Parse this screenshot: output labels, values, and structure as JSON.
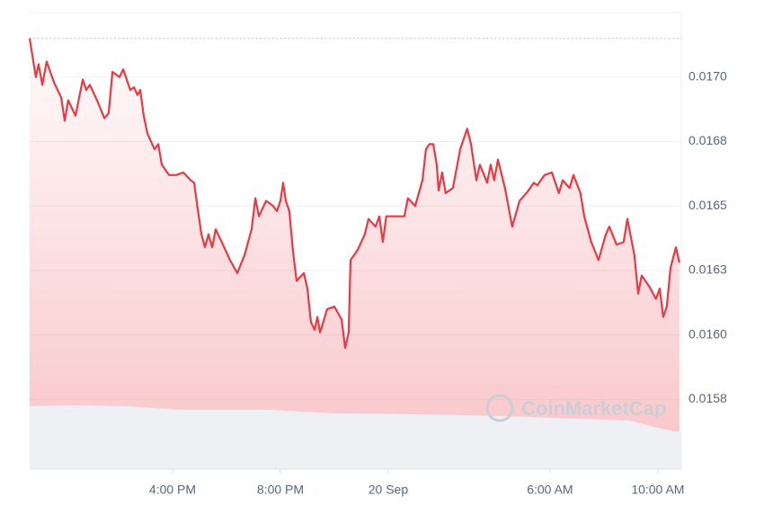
{
  "chart_data": {
    "type": "line",
    "watermark": "CoinMarketCap",
    "xlim": [
      10.7,
      34.87
    ],
    "xticks": [
      {
        "value": 16,
        "label": "4:00 PM"
      },
      {
        "value": 20,
        "label": "8:00 PM"
      },
      {
        "value": 24,
        "label": "20 Sep"
      },
      {
        "value": 30,
        "label": "6:00 AM"
      },
      {
        "value": 34,
        "label": "10:00 AM"
      }
    ],
    "ylim": [
      0.01548,
      0.01725
    ],
    "yticks": [
      {
        "value": 0.017,
        "label": "0.0170"
      },
      {
        "value": 0.01675,
        "label": "0.0168"
      },
      {
        "value": 0.0165,
        "label": "0.0165"
      },
      {
        "value": 0.01625,
        "label": "0.0163"
      },
      {
        "value": 0.016,
        "label": "0.0160"
      },
      {
        "value": 0.01575,
        "label": "0.0158"
      }
    ],
    "grid": true,
    "color": "#ea3943",
    "x": [
      10.7,
      10.93,
      11.03,
      11.17,
      11.33,
      11.6,
      11.87,
      12.0,
      12.13,
      12.4,
      12.67,
      12.8,
      12.93,
      13.2,
      13.47,
      13.63,
      13.77,
      14.03,
      14.17,
      14.43,
      14.57,
      14.7,
      14.8,
      14.93,
      15.07,
      15.33,
      15.47,
      15.6,
      15.87,
      16.13,
      16.4,
      16.67,
      16.8,
      16.93,
      17.07,
      17.2,
      17.33,
      17.47,
      17.6,
      17.87,
      18.13,
      18.4,
      18.67,
      18.93,
      19.07,
      19.2,
      19.47,
      19.73,
      19.87,
      20.0,
      20.1,
      20.2,
      20.33,
      20.47,
      20.6,
      20.87,
      21.0,
      21.13,
      21.27,
      21.37,
      21.47,
      21.73,
      22.0,
      22.27,
      22.4,
      22.53,
      22.6,
      22.87,
      23.13,
      23.27,
      23.53,
      23.67,
      23.8,
      23.93,
      24.2,
      24.6,
      24.73,
      25.0,
      25.27,
      25.4,
      25.53,
      25.67,
      25.8,
      25.87,
      26.0,
      26.13,
      26.4,
      26.67,
      26.93,
      27.07,
      27.27,
      27.4,
      27.67,
      27.8,
      27.93,
      28.07,
      28.33,
      28.6,
      28.87,
      29.13,
      29.4,
      29.53,
      29.8,
      30.07,
      30.33,
      30.47,
      30.73,
      30.87,
      31.13,
      31.27,
      31.53,
      31.8,
      32.07,
      32.2,
      32.47,
      32.73,
      32.87,
      33.13,
      33.27,
      33.4,
      33.67,
      33.93,
      34.07,
      34.2,
      34.33,
      34.47,
      34.67,
      34.8
    ],
    "values": [
      0.01715,
      0.017,
      0.01705,
      0.01697,
      0.01706,
      0.01698,
      0.01692,
      0.01683,
      0.01691,
      0.01685,
      0.01699,
      0.01695,
      0.01697,
      0.01691,
      0.01684,
      0.01686,
      0.01702,
      0.017,
      0.01703,
      0.01695,
      0.01696,
      0.01693,
      0.01695,
      0.01685,
      0.01678,
      0.01672,
      0.01674,
      0.01666,
      0.01662,
      0.01662,
      0.01663,
      0.0166,
      0.01659,
      0.01649,
      0.01639,
      0.01634,
      0.01639,
      0.01634,
      0.01641,
      0.01635,
      0.01629,
      0.01624,
      0.01631,
      0.01641,
      0.01653,
      0.01646,
      0.01652,
      0.0165,
      0.01648,
      0.01652,
      0.01659,
      0.01652,
      0.01648,
      0.01632,
      0.01621,
      0.01624,
      0.01618,
      0.01605,
      0.01602,
      0.01607,
      0.01601,
      0.0161,
      0.01611,
      0.01606,
      0.01595,
      0.01601,
      0.01629,
      0.01633,
      0.01639,
      0.01645,
      0.01642,
      0.01646,
      0.01636,
      0.01646,
      0.01646,
      0.01646,
      0.01653,
      0.0165,
      0.0166,
      0.01672,
      0.01674,
      0.01674,
      0.01666,
      0.01656,
      0.01663,
      0.01655,
      0.01657,
      0.01672,
      0.0168,
      0.01674,
      0.0166,
      0.01666,
      0.01659,
      0.01666,
      0.0166,
      0.01668,
      0.01657,
      0.01642,
      0.01652,
      0.01655,
      0.01659,
      0.01658,
      0.01662,
      0.01663,
      0.01655,
      0.0166,
      0.01657,
      0.01662,
      0.01655,
      0.01646,
      0.01636,
      0.01629,
      0.01639,
      0.01642,
      0.01635,
      0.01636,
      0.01645,
      0.01631,
      0.01616,
      0.01623,
      0.01619,
      0.01614,
      0.01618,
      0.01607,
      0.01611,
      0.01626,
      0.01634,
      0.01628
    ]
  }
}
